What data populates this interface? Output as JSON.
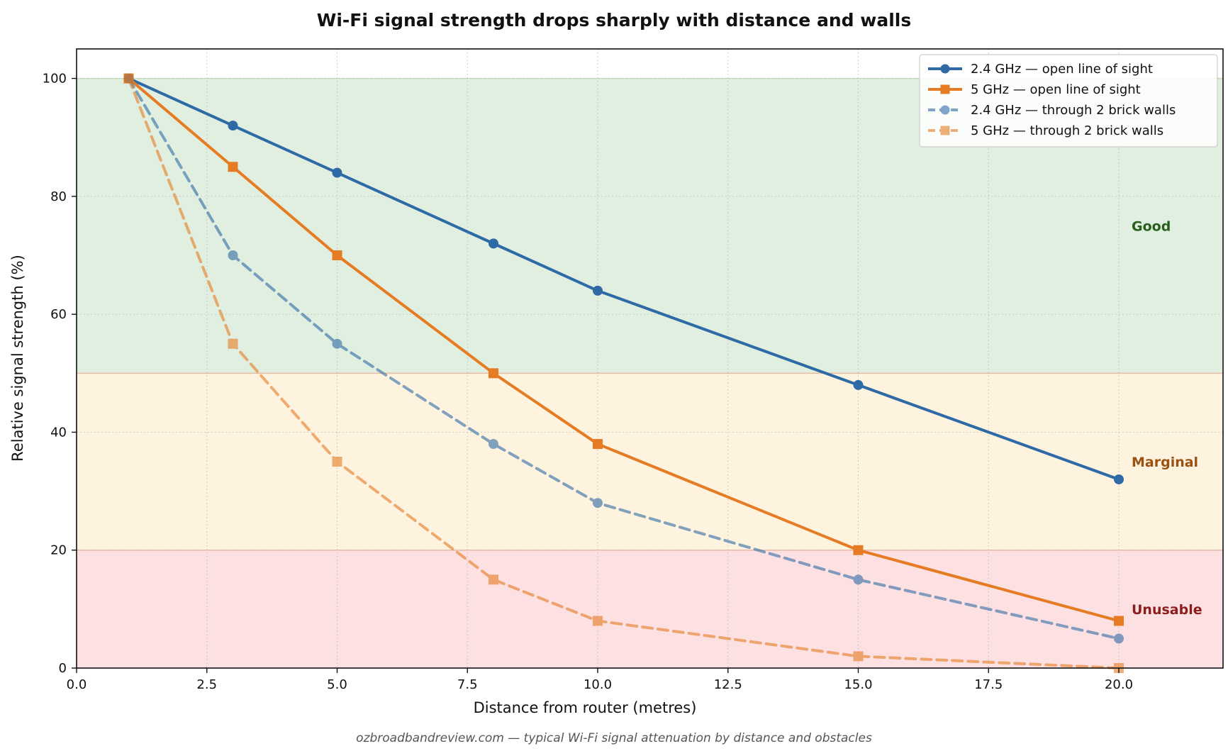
{
  "chart_data": {
    "type": "line",
    "title": "Wi-Fi signal strength drops sharply with distance and walls",
    "xlabel": "Distance from router (metres)",
    "ylabel": "Relative signal strength (%)",
    "xlim": [
      0,
      22
    ],
    "ylim": [
      0,
      105
    ],
    "x_ticks": [
      0,
      2.5,
      5,
      7.5,
      10,
      12.5,
      15,
      17.5,
      20
    ],
    "x_tick_labels": [
      "0.0",
      "2.5",
      "5.0",
      "7.5",
      "10.0",
      "12.5",
      "15.0",
      "17.5",
      "20.0"
    ],
    "y_ticks": [
      0,
      20,
      40,
      60,
      80,
      100
    ],
    "y_tick_labels": [
      "0",
      "20",
      "40",
      "60",
      "80",
      "100"
    ],
    "grid": true,
    "legend_position": "top-right",
    "x": [
      1,
      3,
      5,
      8,
      10,
      15,
      20
    ],
    "series": [
      {
        "name": "2.4 GHz — open line of sight",
        "values": [
          100,
          92,
          84,
          72,
          64,
          48,
          32
        ],
        "color": "#2e6aa6",
        "dash": "solid",
        "marker": "circle",
        "opacity": 1
      },
      {
        "name": "5 GHz — open line of sight",
        "values": [
          100,
          85,
          70,
          50,
          38,
          20,
          8
        ],
        "color": "#e57c23",
        "dash": "solid",
        "marker": "square",
        "opacity": 1
      },
      {
        "name": "2.4 GHz — through 2 brick walls",
        "values": [
          100,
          70,
          55,
          38,
          28,
          15,
          5
        ],
        "color": "#2e6aa6",
        "dash": "dashed",
        "marker": "circle",
        "opacity": 0.6
      },
      {
        "name": "5 GHz — through 2 brick walls",
        "values": [
          100,
          55,
          35,
          15,
          8,
          2,
          0
        ],
        "color": "#e57c23",
        "dash": "dashed",
        "marker": "square",
        "opacity": 0.6
      }
    ],
    "zones": [
      {
        "label": "Good",
        "from": 50,
        "to": 100,
        "fill": "#e0efdf",
        "edge": "#c6e2b4",
        "text_color": "#2a5e1f",
        "label_y": 75
      },
      {
        "label": "Marginal",
        "from": 20,
        "to": 50,
        "fill": "#fef3df",
        "edge": "#f5b8a4",
        "text_color": "#9a5214",
        "label_y": 35
      },
      {
        "label": "Unusable",
        "from": 0,
        "to": 20,
        "fill": "#fde0e1",
        "edge": "#f5b8a4",
        "text_color": "#8b1d1d",
        "label_y": 10
      }
    ],
    "footer": "ozbroadbandreview.com — typical Wi-Fi signal attenuation by distance and obstacles"
  }
}
